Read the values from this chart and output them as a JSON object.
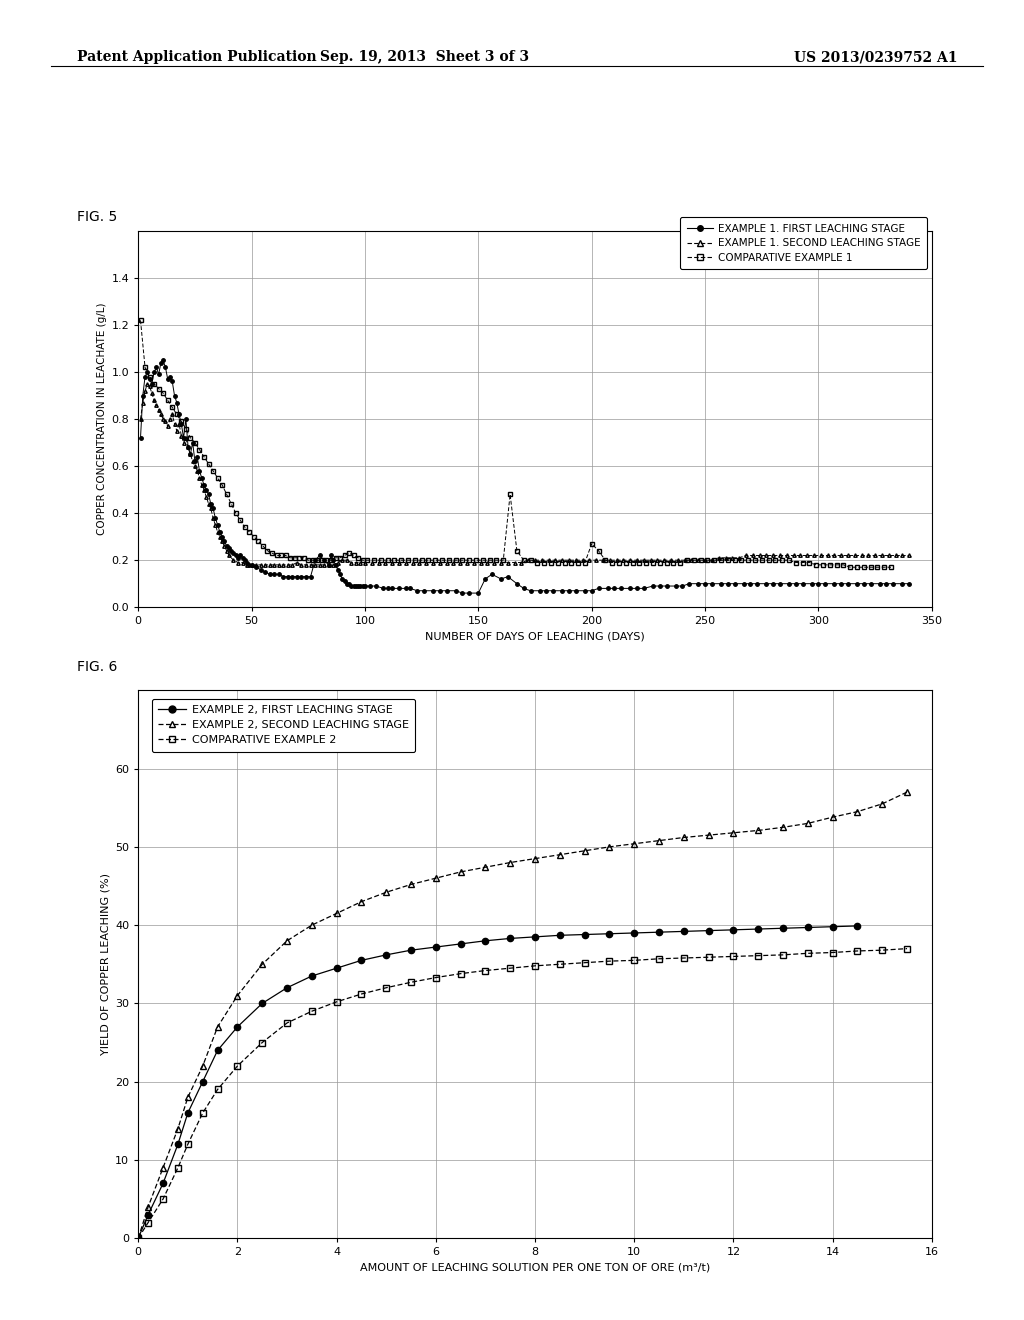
{
  "header_left": "Patent Application Publication",
  "header_mid": "Sep. 19, 2013  Sheet 3 of 3",
  "header_right": "US 2013/0239752 A1",
  "fig5_label": "FIG. 5",
  "fig6_label": "FIG. 6",
  "fig5": {
    "ylabel": "COPPER CONCENTRATION IN LEACHATE (g/L)",
    "xlabel": "NUMBER OF DAYS OF LEACHING (DAYS)",
    "xlim": [
      0,
      350
    ],
    "ylim": [
      0.0,
      1.6
    ],
    "yticks": [
      0.0,
      0.2,
      0.4,
      0.6,
      0.8,
      1.0,
      1.2,
      1.4
    ],
    "xticks": [
      0,
      50,
      100,
      150,
      200,
      250,
      300,
      350
    ],
    "legend": [
      "EXAMPLE 1. FIRST LEACHING STAGE",
      "EXAMPLE 1. SECOND LEACHING STAGE",
      "COMPARATIVE EXAMPLE 1"
    ],
    "series1_x": [
      1,
      2,
      3,
      4,
      5,
      6,
      7,
      8,
      9,
      10,
      11,
      12,
      13,
      14,
      15,
      16,
      17,
      18,
      19,
      20,
      21,
      22,
      23,
      24,
      25,
      26,
      27,
      28,
      29,
      30,
      31,
      32,
      33,
      34,
      35,
      36,
      37,
      38,
      39,
      40,
      41,
      42,
      43,
      44,
      45,
      46,
      47,
      48,
      49,
      50,
      52,
      54,
      56,
      58,
      60,
      62,
      64,
      66,
      68,
      70,
      72,
      74,
      76,
      78,
      80,
      82,
      84,
      85,
      86,
      87,
      88,
      89,
      90,
      91,
      92,
      93,
      94,
      95,
      96,
      97,
      98,
      99,
      100,
      102,
      105,
      108,
      110,
      112,
      115,
      118,
      120,
      123,
      126,
      130,
      133,
      136,
      140,
      143,
      146,
      150,
      153,
      156,
      160,
      163,
      167,
      170,
      173,
      177,
      180,
      183,
      187,
      190,
      193,
      197,
      200,
      203,
      207,
      210,
      213,
      217,
      220,
      223,
      227,
      230,
      233,
      237,
      240,
      243,
      247,
      250,
      253,
      257,
      260,
      263,
      267,
      270,
      273,
      277,
      280,
      283,
      287,
      290,
      293,
      297,
      300,
      303,
      307,
      310,
      313,
      317,
      320,
      323,
      327,
      330,
      333,
      337,
      340
    ],
    "series1_y": [
      0.72,
      0.9,
      0.98,
      1.0,
      0.97,
      0.95,
      1.0,
      1.02,
      0.99,
      1.04,
      1.05,
      1.02,
      0.97,
      0.98,
      0.96,
      0.9,
      0.87,
      0.82,
      0.78,
      0.72,
      0.8,
      0.68,
      0.65,
      0.7,
      0.62,
      0.64,
      0.58,
      0.55,
      0.52,
      0.5,
      0.48,
      0.44,
      0.42,
      0.38,
      0.35,
      0.32,
      0.3,
      0.28,
      0.26,
      0.25,
      0.24,
      0.23,
      0.22,
      0.21,
      0.22,
      0.21,
      0.2,
      0.19,
      0.18,
      0.18,
      0.17,
      0.16,
      0.15,
      0.14,
      0.14,
      0.14,
      0.13,
      0.13,
      0.13,
      0.13,
      0.13,
      0.13,
      0.13,
      0.2,
      0.22,
      0.2,
      0.18,
      0.22,
      0.2,
      0.18,
      0.16,
      0.14,
      0.12,
      0.11,
      0.1,
      0.1,
      0.09,
      0.09,
      0.09,
      0.09,
      0.09,
      0.09,
      0.09,
      0.09,
      0.09,
      0.08,
      0.08,
      0.08,
      0.08,
      0.08,
      0.08,
      0.07,
      0.07,
      0.07,
      0.07,
      0.07,
      0.07,
      0.06,
      0.06,
      0.06,
      0.12,
      0.14,
      0.12,
      0.13,
      0.1,
      0.08,
      0.07,
      0.07,
      0.07,
      0.07,
      0.07,
      0.07,
      0.07,
      0.07,
      0.07,
      0.08,
      0.08,
      0.08,
      0.08,
      0.08,
      0.08,
      0.08,
      0.09,
      0.09,
      0.09,
      0.09,
      0.09,
      0.1,
      0.1,
      0.1,
      0.1,
      0.1,
      0.1,
      0.1,
      0.1,
      0.1,
      0.1,
      0.1,
      0.1,
      0.1,
      0.1,
      0.1,
      0.1,
      0.1,
      0.1,
      0.1,
      0.1,
      0.1,
      0.1,
      0.1,
      0.1,
      0.1,
      0.1,
      0.1,
      0.1,
      0.1,
      0.1
    ],
    "series2_x": [
      1,
      2,
      3,
      4,
      5,
      6,
      7,
      8,
      9,
      10,
      11,
      12,
      13,
      14,
      15,
      16,
      17,
      18,
      19,
      20,
      21,
      22,
      23,
      24,
      25,
      26,
      27,
      28,
      29,
      30,
      31,
      32,
      33,
      34,
      35,
      36,
      37,
      38,
      39,
      40,
      42,
      44,
      46,
      48,
      50,
      52,
      54,
      56,
      58,
      60,
      62,
      64,
      66,
      68,
      70,
      72,
      74,
      76,
      78,
      80,
      82,
      84,
      86,
      88,
      90,
      92,
      94,
      96,
      98,
      100,
      103,
      106,
      109,
      112,
      115,
      118,
      121,
      124,
      127,
      130,
      133,
      136,
      139,
      142,
      145,
      148,
      151,
      154,
      157,
      160,
      163,
      166,
      169,
      172,
      175,
      178,
      181,
      184,
      187,
      190,
      193,
      196,
      199,
      202,
      205,
      208,
      211,
      214,
      217,
      220,
      223,
      226,
      229,
      232,
      235,
      238,
      241,
      244,
      247,
      250,
      253,
      256,
      259,
      262,
      265,
      268,
      271,
      274,
      277,
      280,
      283,
      286,
      289,
      292,
      295,
      298,
      301,
      304,
      307,
      310,
      313,
      316,
      319,
      322,
      325,
      328,
      331,
      334,
      337,
      340
    ],
    "series2_y": [
      0.8,
      0.87,
      0.92,
      0.95,
      0.94,
      0.91,
      0.88,
      0.86,
      0.84,
      0.82,
      0.8,
      0.79,
      0.77,
      0.8,
      0.82,
      0.78,
      0.75,
      0.78,
      0.73,
      0.7,
      0.72,
      0.68,
      0.65,
      0.62,
      0.6,
      0.58,
      0.55,
      0.52,
      0.5,
      0.47,
      0.44,
      0.42,
      0.38,
      0.35,
      0.32,
      0.3,
      0.28,
      0.26,
      0.24,
      0.22,
      0.2,
      0.19,
      0.19,
      0.18,
      0.18,
      0.18,
      0.18,
      0.18,
      0.18,
      0.18,
      0.18,
      0.18,
      0.18,
      0.18,
      0.19,
      0.18,
      0.18,
      0.18,
      0.18,
      0.18,
      0.18,
      0.18,
      0.18,
      0.19,
      0.2,
      0.2,
      0.19,
      0.19,
      0.19,
      0.19,
      0.19,
      0.19,
      0.19,
      0.19,
      0.19,
      0.19,
      0.19,
      0.19,
      0.19,
      0.19,
      0.19,
      0.19,
      0.19,
      0.19,
      0.19,
      0.19,
      0.19,
      0.19,
      0.19,
      0.19,
      0.19,
      0.19,
      0.19,
      0.2,
      0.2,
      0.2,
      0.2,
      0.2,
      0.2,
      0.2,
      0.2,
      0.2,
      0.2,
      0.2,
      0.2,
      0.2,
      0.2,
      0.2,
      0.2,
      0.2,
      0.2,
      0.2,
      0.2,
      0.2,
      0.2,
      0.2,
      0.2,
      0.2,
      0.2,
      0.2,
      0.2,
      0.21,
      0.21,
      0.21,
      0.21,
      0.22,
      0.22,
      0.22,
      0.22,
      0.22,
      0.22,
      0.22,
      0.22,
      0.22,
      0.22,
      0.22,
      0.22,
      0.22,
      0.22,
      0.22,
      0.22,
      0.22,
      0.22,
      0.22,
      0.22,
      0.22,
      0.22,
      0.22,
      0.22,
      0.22
    ],
    "series3_x": [
      1,
      3,
      5,
      7,
      9,
      11,
      13,
      15,
      17,
      19,
      21,
      23,
      25,
      27,
      29,
      31,
      33,
      35,
      37,
      39,
      41,
      43,
      45,
      47,
      49,
      51,
      53,
      55,
      57,
      59,
      61,
      63,
      65,
      67,
      69,
      71,
      73,
      75,
      77,
      79,
      81,
      83,
      85,
      87,
      89,
      91,
      93,
      95,
      97,
      99,
      101,
      104,
      107,
      110,
      113,
      116,
      119,
      122,
      125,
      128,
      131,
      134,
      137,
      140,
      143,
      146,
      149,
      152,
      155,
      158,
      161,
      164,
      167,
      170,
      173,
      176,
      179,
      182,
      185,
      188,
      191,
      194,
      197,
      200,
      203,
      206,
      209,
      212,
      215,
      218,
      221,
      224,
      227,
      230,
      233,
      236,
      239,
      242,
      245,
      248,
      251,
      254,
      257,
      260,
      263,
      266,
      269,
      272,
      275,
      278,
      281,
      284,
      287,
      290,
      293,
      296,
      299,
      302,
      305,
      308,
      311,
      314,
      317,
      320,
      323,
      326,
      329,
      332
    ],
    "series3_y": [
      1.22,
      1.02,
      0.98,
      0.95,
      0.93,
      0.91,
      0.88,
      0.85,
      0.82,
      0.79,
      0.76,
      0.72,
      0.7,
      0.67,
      0.64,
      0.61,
      0.58,
      0.55,
      0.52,
      0.48,
      0.44,
      0.4,
      0.37,
      0.34,
      0.32,
      0.3,
      0.28,
      0.26,
      0.24,
      0.23,
      0.22,
      0.22,
      0.22,
      0.21,
      0.21,
      0.21,
      0.21,
      0.2,
      0.2,
      0.2,
      0.2,
      0.2,
      0.2,
      0.21,
      0.21,
      0.22,
      0.23,
      0.22,
      0.21,
      0.2,
      0.2,
      0.2,
      0.2,
      0.2,
      0.2,
      0.2,
      0.2,
      0.2,
      0.2,
      0.2,
      0.2,
      0.2,
      0.2,
      0.2,
      0.2,
      0.2,
      0.2,
      0.2,
      0.2,
      0.2,
      0.2,
      0.48,
      0.24,
      0.2,
      0.2,
      0.19,
      0.19,
      0.19,
      0.19,
      0.19,
      0.19,
      0.19,
      0.19,
      0.27,
      0.24,
      0.2,
      0.19,
      0.19,
      0.19,
      0.19,
      0.19,
      0.19,
      0.19,
      0.19,
      0.19,
      0.19,
      0.19,
      0.2,
      0.2,
      0.2,
      0.2,
      0.2,
      0.2,
      0.2,
      0.2,
      0.2,
      0.2,
      0.2,
      0.2,
      0.2,
      0.2,
      0.2,
      0.2,
      0.19,
      0.19,
      0.19,
      0.18,
      0.18,
      0.18,
      0.18,
      0.18,
      0.17,
      0.17,
      0.17,
      0.17,
      0.17,
      0.17,
      0.17
    ]
  },
  "fig6": {
    "ylabel": "YIELD OF COPPER LEACHING (%)",
    "xlabel": "AMOUNT OF LEACHING SOLUTION PER ONE TON OF ORE (m³/t)",
    "xlim": [
      0,
      16
    ],
    "ylim": [
      0,
      70
    ],
    "yticks": [
      0,
      10,
      20,
      30,
      40,
      50,
      60
    ],
    "xticks": [
      0,
      2,
      4,
      6,
      8,
      10,
      12,
      14,
      16
    ],
    "legend": [
      "EXAMPLE 2, FIRST LEACHING STAGE",
      "EXAMPLE 2, SECOND LEACHING STAGE",
      "COMPARATIVE EXAMPLE 2"
    ],
    "series1_x": [
      0,
      0.2,
      0.5,
      0.8,
      1.0,
      1.3,
      1.6,
      2.0,
      2.5,
      3.0,
      3.5,
      4.0,
      4.5,
      5.0,
      5.5,
      6.0,
      6.5,
      7.0,
      7.5,
      8.0,
      8.5,
      9.0,
      9.5,
      10.0,
      10.5,
      11.0,
      11.5,
      12.0,
      12.5,
      13.0,
      13.5,
      14.0,
      14.5
    ],
    "series1_y": [
      0,
      3,
      7,
      12,
      16,
      20,
      24,
      27,
      30,
      32,
      33.5,
      34.5,
      35.5,
      36.2,
      36.8,
      37.2,
      37.6,
      38.0,
      38.3,
      38.5,
      38.7,
      38.8,
      38.9,
      39.0,
      39.1,
      39.2,
      39.3,
      39.4,
      39.5,
      39.6,
      39.7,
      39.8,
      39.9
    ],
    "series2_x": [
      0,
      0.2,
      0.5,
      0.8,
      1.0,
      1.3,
      1.6,
      2.0,
      2.5,
      3.0,
      3.5,
      4.0,
      4.5,
      5.0,
      5.5,
      6.0,
      6.5,
      7.0,
      7.5,
      8.0,
      8.5,
      9.0,
      9.5,
      10.0,
      10.5,
      11.0,
      11.5,
      12.0,
      12.5,
      13.0,
      13.5,
      14.0,
      14.5,
      15.0,
      15.5
    ],
    "series2_y": [
      0,
      4,
      9,
      14,
      18,
      22,
      27,
      31,
      35,
      38,
      40,
      41.5,
      43,
      44.2,
      45.2,
      46.0,
      46.8,
      47.4,
      48.0,
      48.5,
      49.0,
      49.5,
      50.0,
      50.4,
      50.8,
      51.2,
      51.5,
      51.8,
      52.1,
      52.5,
      53.0,
      53.8,
      54.5,
      55.5,
      57.0
    ],
    "series3_x": [
      0,
      0.2,
      0.5,
      0.8,
      1.0,
      1.3,
      1.6,
      2.0,
      2.5,
      3.0,
      3.5,
      4.0,
      4.5,
      5.0,
      5.5,
      6.0,
      6.5,
      7.0,
      7.5,
      8.0,
      8.5,
      9.0,
      9.5,
      10.0,
      10.5,
      11.0,
      11.5,
      12.0,
      12.5,
      13.0,
      13.5,
      14.0,
      14.5,
      15.0,
      15.5
    ],
    "series3_y": [
      0,
      2,
      5,
      9,
      12,
      16,
      19,
      22,
      25,
      27.5,
      29,
      30.2,
      31.2,
      32.0,
      32.7,
      33.3,
      33.8,
      34.2,
      34.5,
      34.8,
      35.0,
      35.2,
      35.4,
      35.5,
      35.7,
      35.8,
      35.9,
      36.0,
      36.1,
      36.2,
      36.4,
      36.5,
      36.7,
      36.8,
      37.0
    ]
  },
  "bg_color": "#ffffff",
  "text_color": "#000000",
  "grid_color": "#999999",
  "line_color": "#000000"
}
